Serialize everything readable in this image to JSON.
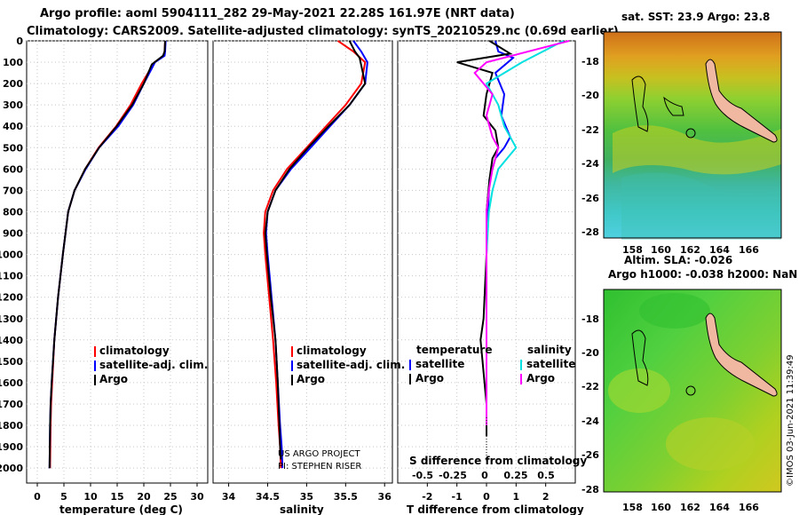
{
  "header": {
    "line1": "Argo profile: aoml 5904111_282 29-May-2021 22.28S 161.97E (NRT data)",
    "line2": "Climatology: CARS2009. Satellite-adjusted climatology: synTS_20210529.nc (0.69d earlier)"
  },
  "colors": {
    "climatology": "#ff0000",
    "satellite": "#0000ff",
    "argo": "#000000",
    "sat_salinity": "#00e0e0",
    "argo_salinity": "#ff00ff"
  },
  "depth_ticks": [
    "0",
    "100",
    "200",
    "300",
    "400",
    "500",
    "600",
    "700",
    "800",
    "900",
    "1000",
    "1100",
    "1200",
    "1300",
    "1400",
    "1500",
    "1600",
    "1700",
    "1800",
    "1900",
    "2000"
  ],
  "chart_data": [
    {
      "type": "line",
      "name": "temperature-profile",
      "xlabel": "temperature (deg C)",
      "xlim": [
        -2,
        32
      ],
      "ylim": [
        2070,
        0
      ],
      "xticks": [
        "0",
        "5",
        "10",
        "15",
        "20",
        "25",
        "30"
      ],
      "legend": [
        "climatology",
        "satellite-adj. clim.",
        "Argo"
      ],
      "series": [
        {
          "name": "climatology",
          "x": [
            24,
            23.9,
            23.8,
            22,
            19.6,
            17.5,
            14.8,
            11.5,
            9,
            7,
            5.8,
            4.8,
            3.9,
            3.2,
            2.8,
            2.6,
            2.5,
            2.4
          ],
          "y": [
            0,
            50,
            70,
            100,
            200,
            300,
            400,
            500,
            600,
            700,
            800,
            1000,
            1200,
            1400,
            1600,
            1700,
            1800,
            2000
          ]
        },
        {
          "name": "satellite-adj. clim.",
          "x": [
            24.1,
            24,
            23.9,
            22.1,
            20,
            18,
            15.2,
            11.6,
            9.1,
            7,
            5.8,
            4.8,
            3.9,
            3.2,
            2.7,
            2.5,
            2.4,
            2.3
          ],
          "y": [
            0,
            50,
            70,
            100,
            200,
            300,
            400,
            500,
            600,
            700,
            800,
            1000,
            1200,
            1400,
            1600,
            1700,
            1800,
            2000
          ]
        },
        {
          "name": "Argo",
          "x": [
            24,
            23.9,
            23.6,
            21.5,
            20,
            17.8,
            14.9,
            11.6,
            9,
            7,
            5.8,
            4.8,
            3.9,
            3.2,
            2.7,
            2.5,
            2.4,
            2.3
          ],
          "y": [
            0,
            50,
            70,
            110,
            200,
            300,
            400,
            500,
            600,
            700,
            800,
            1000,
            1200,
            1400,
            1600,
            1700,
            1800,
            2000
          ]
        }
      ]
    },
    {
      "type": "line",
      "name": "salinity-profile",
      "xlabel": "salinity",
      "xlim": [
        33.8,
        36.1
      ],
      "ylim": [
        2070,
        0
      ],
      "xticks": [
        "34",
        "34.5",
        "35",
        "35.5",
        "36"
      ],
      "legend": [
        "climatology",
        "satellite-adj. clim.",
        "Argo"
      ],
      "credit": [
        "US ARGO PROJECT",
        "PI: STEPHEN RISER"
      ],
      "series": [
        {
          "name": "climatology",
          "x": [
            35.4,
            35.6,
            35.75,
            35.7,
            35.5,
            35.25,
            35,
            34.75,
            34.57,
            34.47,
            34.45,
            34.47,
            34.52,
            34.57,
            34.61,
            34.64,
            34.66,
            34.67
          ],
          "y": [
            0,
            50,
            100,
            200,
            300,
            400,
            500,
            600,
            700,
            800,
            900,
            1000,
            1200,
            1400,
            1600,
            1800,
            1900,
            2000
          ]
        },
        {
          "name": "satellite-adj. clim.",
          "x": [
            35.6,
            35.7,
            35.78,
            35.75,
            35.55,
            35.3,
            35.05,
            34.8,
            34.6,
            34.5,
            34.48,
            34.5,
            34.55,
            34.6,
            34.63,
            34.66,
            34.68,
            34.69
          ],
          "y": [
            0,
            50,
            100,
            200,
            300,
            400,
            500,
            600,
            700,
            800,
            900,
            1000,
            1200,
            1400,
            1600,
            1800,
            1900,
            2000
          ]
        },
        {
          "name": "Argo",
          "x": [
            35.55,
            35.62,
            35.68,
            35.75,
            35.55,
            35.28,
            35.02,
            34.78,
            34.6,
            34.5,
            34.47,
            34.49,
            34.54,
            34.6,
            34.63,
            34.65,
            34.66,
            34.67
          ],
          "y": [
            0,
            50,
            80,
            200,
            300,
            400,
            500,
            600,
            700,
            800,
            900,
            1000,
            1200,
            1400,
            1600,
            1800,
            1900,
            1960
          ]
        }
      ]
    },
    {
      "type": "line",
      "name": "difference-profile",
      "xlabel": "T difference from climatology",
      "xlabel2": "S difference from climatology",
      "xlim": [
        -3,
        3
      ],
      "ylim": [
        2070,
        0
      ],
      "xticks": [
        "-2",
        "-1",
        "0",
        "1",
        "2"
      ],
      "xticks2": [
        "-0.5",
        "-0.25",
        "0",
        "0.25",
        "0.5"
      ],
      "legend_left_title": "temperature",
      "legend_right_title": "salinity",
      "legend_left": [
        "satellite",
        "Argo"
      ],
      "legend_right": [
        "satellite",
        "Argo"
      ],
      "series": [
        {
          "name": "T satellite",
          "x": [
            0.3,
            0.4,
            0.9,
            0.3,
            0.6,
            0.5,
            0.8,
            0.6,
            0.3,
            0.1,
            0.05,
            0,
            0,
            0,
            0,
            0
          ],
          "y": [
            0,
            50,
            80,
            150,
            250,
            350,
            450,
            500,
            550,
            650,
            800,
            1000,
            1200,
            1400,
            1600,
            1800
          ]
        },
        {
          "name": "T Argo",
          "x": [
            0.1,
            0.8,
            -1,
            0.2,
            0,
            -0.1,
            0.3,
            0.4,
            0.2,
            0.1,
            0,
            0,
            -0.1,
            -0.2,
            0,
            0
          ],
          "y": [
            0,
            60,
            100,
            150,
            250,
            350,
            420,
            500,
            550,
            650,
            800,
            1000,
            1300,
            1400,
            1700,
            1850
          ]
        },
        {
          "name": "S satellite",
          "x": [
            0.65,
            0.3,
            0,
            0.1,
            0.15,
            0.2,
            0.25,
            0.1,
            0.05,
            0.02,
            0,
            0
          ],
          "y": [
            0,
            100,
            200,
            300,
            400,
            450,
            500,
            600,
            700,
            800,
            1000,
            1800
          ]
        },
        {
          "name": "S Argo",
          "x": [
            0.7,
            0,
            -0.1,
            0.05,
            0,
            0.05,
            0.1,
            0.05,
            0.02,
            0,
            0,
            0
          ],
          "y": [
            0,
            100,
            150,
            250,
            350,
            450,
            500,
            600,
            700,
            800,
            1000,
            1800
          ]
        }
      ]
    }
  ],
  "maps": {
    "sst": {
      "title": "sat. SST: 23.9 Argo: 23.8",
      "yticks": [
        "-18",
        "-20",
        "-22",
        "-24",
        "-26",
        "-28"
      ],
      "xticks": [
        "158",
        "160",
        "162",
        "164",
        "166"
      ]
    },
    "sla": {
      "title1": "Altim. SLA: -0.026",
      "title2": "Argo h1000: -0.038 h2000: NaN",
      "yticks": [
        "-18",
        "-20",
        "-22",
        "-24",
        "-26",
        "-28"
      ],
      "xticks": [
        "158",
        "160",
        "162",
        "164",
        "166"
      ]
    }
  },
  "footer_stamp": "©IMOS 03-Jun-2021 11:39:49"
}
